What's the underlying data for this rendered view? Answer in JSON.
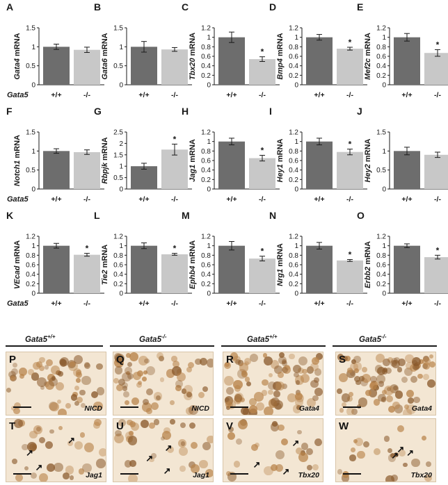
{
  "chart_data": [
    {
      "panel": "A",
      "type": "bar",
      "gene": "Gata4",
      "ylabel_suffix": "mRNA",
      "categories": [
        "+/+",
        "-/-"
      ],
      "values": [
        1.0,
        0.92
      ],
      "errors": [
        0.07,
        0.07
      ],
      "ylim": [
        0,
        1.5
      ],
      "yticks": [
        "0",
        "0.5",
        "1",
        "1.5"
      ],
      "significant": [
        false,
        false
      ],
      "genotype_label": "Gata5"
    },
    {
      "panel": "B",
      "type": "bar",
      "gene": "Gata6",
      "ylabel_suffix": "mRNA",
      "categories": [
        "+/+",
        "-/-"
      ],
      "values": [
        1.0,
        0.93
      ],
      "errors": [
        0.14,
        0.05
      ],
      "ylim": [
        0,
        1.5
      ],
      "yticks": [
        "0",
        "0.5",
        "1",
        "1.5"
      ],
      "significant": [
        false,
        false
      ],
      "genotype_label": ""
    },
    {
      "panel": "C",
      "type": "bar",
      "gene": "Tbx20",
      "ylabel_suffix": "mRNA",
      "categories": [
        "+/+",
        "-/-"
      ],
      "values": [
        1.0,
        0.54
      ],
      "errors": [
        0.11,
        0.05
      ],
      "ylim": [
        0,
        1.2
      ],
      "yticks": [
        "0",
        "0.2",
        "0.4",
        "0.6",
        "0.8",
        "1",
        "1.2"
      ],
      "significant": [
        false,
        true
      ],
      "genotype_label": ""
    },
    {
      "panel": "D",
      "type": "bar",
      "gene": "Bmp4",
      "ylabel_suffix": "mRNA",
      "categories": [
        "+/+",
        "-/-"
      ],
      "values": [
        1.0,
        0.76
      ],
      "errors": [
        0.06,
        0.03
      ],
      "ylim": [
        0,
        1.2
      ],
      "yticks": [
        "0",
        "0.2",
        "0.4",
        "0.6",
        "0.8",
        "1",
        "1.2"
      ],
      "significant": [
        false,
        true
      ],
      "genotype_label": ""
    },
    {
      "panel": "E",
      "type": "bar",
      "gene": "Mef2c",
      "ylabel_suffix": "mRNA",
      "categories": [
        "+/+",
        "-/-"
      ],
      "values": [
        1.0,
        0.67
      ],
      "errors": [
        0.08,
        0.07
      ],
      "ylim": [
        0,
        1.2
      ],
      "yticks": [
        "0",
        "0.2",
        "0.4",
        "0.6",
        "0.8",
        "1",
        "1.2"
      ],
      "significant": [
        false,
        true
      ],
      "genotype_label": ""
    },
    {
      "panel": "F",
      "type": "bar",
      "gene": "Notch1",
      "ylabel_suffix": "mRNA",
      "categories": [
        "+/+",
        "-/-"
      ],
      "values": [
        1.0,
        0.97
      ],
      "errors": [
        0.06,
        0.06
      ],
      "ylim": [
        0,
        1.5
      ],
      "yticks": [
        "0",
        "0.5",
        "1",
        "1.5"
      ],
      "significant": [
        false,
        false
      ],
      "genotype_label": "Gata5"
    },
    {
      "panel": "G",
      "type": "bar",
      "gene": "Rbpjk",
      "ylabel_suffix": "mRNA",
      "categories": [
        "+/+",
        "-/-"
      ],
      "values": [
        1.0,
        1.73
      ],
      "errors": [
        0.13,
        0.24
      ],
      "ylim": [
        0,
        2.5
      ],
      "yticks": [
        "0",
        "0.5",
        "1",
        "1.5",
        "2",
        "2.5"
      ],
      "significant": [
        false,
        true
      ],
      "genotype_label": ""
    },
    {
      "panel": "H",
      "type": "bar",
      "gene": "Jag1",
      "ylabel_suffix": "mRNA",
      "categories": [
        "+/+",
        "-/-"
      ],
      "values": [
        1.0,
        0.65
      ],
      "errors": [
        0.07,
        0.06
      ],
      "ylim": [
        0,
        1.2
      ],
      "yticks": [
        "0",
        "0.2",
        "0.4",
        "0.6",
        "0.8",
        "1",
        "1.2"
      ],
      "significant": [
        false,
        true
      ],
      "genotype_label": ""
    },
    {
      "panel": "I",
      "type": "bar",
      "gene": "Hey1",
      "ylabel_suffix": "mRNA",
      "categories": [
        "+/+",
        "-/-"
      ],
      "values": [
        1.0,
        0.78
      ],
      "errors": [
        0.07,
        0.06
      ],
      "ylim": [
        0,
        1.2
      ],
      "yticks": [
        "0",
        "0.2",
        "0.4",
        "0.6",
        "0.8",
        "1",
        "1.2"
      ],
      "significant": [
        false,
        true
      ],
      "genotype_label": ""
    },
    {
      "panel": "J",
      "type": "bar",
      "gene": "Hey2",
      "ylabel_suffix": "mRNA",
      "categories": [
        "+/+",
        "-/-"
      ],
      "values": [
        1.0,
        0.9
      ],
      "errors": [
        0.1,
        0.07
      ],
      "ylim": [
        0,
        1.5
      ],
      "yticks": [
        "0",
        "0.5",
        "1",
        "1.5"
      ],
      "significant": [
        false,
        false
      ],
      "genotype_label": ""
    },
    {
      "panel": "K",
      "type": "bar",
      "gene": "VEcad",
      "ylabel_suffix": "mRNA",
      "categories": [
        "+/+",
        "-/-"
      ],
      "values": [
        1.0,
        0.81
      ],
      "errors": [
        0.05,
        0.03
      ],
      "ylim": [
        0,
        1.2
      ],
      "yticks": [
        "0",
        "0.2",
        "0.4",
        "0.6",
        "0.8",
        "1",
        "1.2"
      ],
      "significant": [
        false,
        true
      ],
      "genotype_label": "Gata5"
    },
    {
      "panel": "L",
      "type": "bar",
      "gene": "Tie2",
      "ylabel_suffix": "mRNA",
      "categories": [
        "+/+",
        "-/-"
      ],
      "values": [
        1.0,
        0.82
      ],
      "errors": [
        0.06,
        0.02
      ],
      "ylim": [
        0,
        1.2
      ],
      "yticks": [
        "0",
        "0.2",
        "0.4",
        "0.6",
        "0.8",
        "1",
        "1.2"
      ],
      "significant": [
        false,
        true
      ],
      "genotype_label": ""
    },
    {
      "panel": "M",
      "type": "bar",
      "gene": "Ephb4",
      "ylabel_suffix": "mRNA",
      "categories": [
        "+/+",
        "-/-"
      ],
      "values": [
        1.0,
        0.73
      ],
      "errors": [
        0.09,
        0.05
      ],
      "ylim": [
        0,
        1.2
      ],
      "yticks": [
        "0",
        "0.2",
        "0.4",
        "0.6",
        "0.8",
        "1",
        "1.2"
      ],
      "significant": [
        false,
        true
      ],
      "genotype_label": ""
    },
    {
      "panel": "N",
      "type": "bar",
      "gene": "Nrg1",
      "ylabel_suffix": "mRNA",
      "categories": [
        "+/+",
        "-/-"
      ],
      "values": [
        1.0,
        0.69
      ],
      "errors": [
        0.07,
        0.02
      ],
      "ylim": [
        0,
        1.2
      ],
      "yticks": [
        "0",
        "0.2",
        "0.4",
        "0.6",
        "0.8",
        "1",
        "1.2"
      ],
      "significant": [
        false,
        true
      ],
      "genotype_label": ""
    },
    {
      "panel": "O",
      "type": "bar",
      "gene": "Erbb2",
      "ylabel_suffix": "mRNA",
      "categories": [
        "+/+",
        "-/-"
      ],
      "values": [
        1.0,
        0.76
      ],
      "errors": [
        0.04,
        0.04
      ],
      "ylim": [
        0,
        1.2
      ],
      "yticks": [
        "0",
        "0.2",
        "0.4",
        "0.6",
        "0.8",
        "1",
        "1.2"
      ],
      "significant": [
        false,
        true
      ],
      "genotype_label": ""
    }
  ],
  "significance_marker": "*",
  "colors": {
    "wildtype_bar": "#6d6d6d",
    "mutant_bar": "#c8c8c8",
    "stain_bg": "#f3e6d3",
    "stain_cell": "#b8834a",
    "stain_nucleus": "#8a5a2c",
    "axis": "#1a1a1a"
  },
  "micrographs": {
    "column_headers": [
      {
        "base": "Gata5",
        "sup": "+/+"
      },
      {
        "base": "Gata5",
        "sup": "-/-"
      },
      {
        "base": "Gata5",
        "sup": "+/+"
      },
      {
        "base": "Gata5",
        "sup": "-/-"
      }
    ],
    "panels": [
      {
        "label": "P",
        "stain": "NICD"
      },
      {
        "label": "Q",
        "stain": "NICD"
      },
      {
        "label": "R",
        "stain": "Gata4"
      },
      {
        "label": "S",
        "stain": "Gata4"
      },
      {
        "label": "T",
        "stain": "Jag1"
      },
      {
        "label": "U",
        "stain": "Jag1"
      },
      {
        "label": "V",
        "stain": "Tbx20"
      },
      {
        "label": "W",
        "stain": "Tbx20"
      }
    ]
  }
}
